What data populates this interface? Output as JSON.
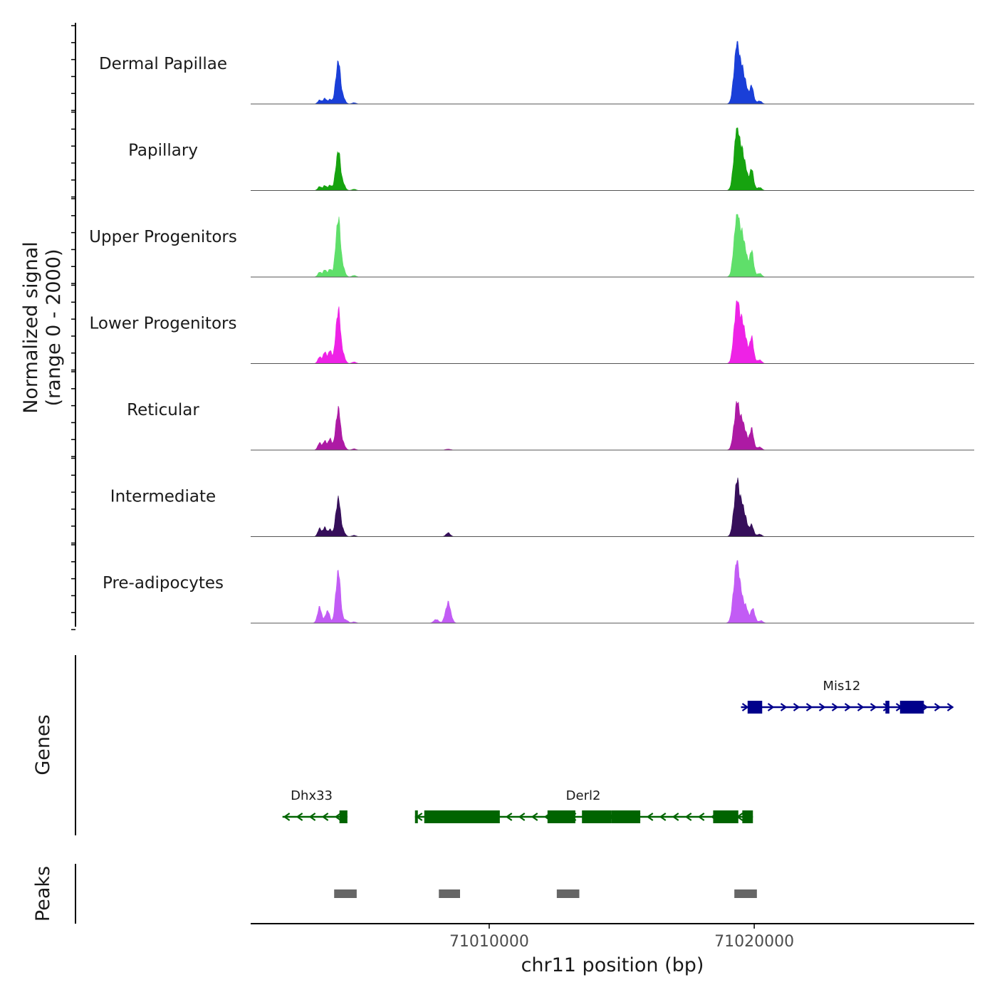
{
  "chart_data": {
    "type": "area",
    "title": "",
    "chromosome": "chr11",
    "xlabel": "chr11 position (bp)",
    "xlim": [
      71001000,
      71028300
    ],
    "xticks": [
      71010000,
      71020000
    ],
    "xtick_labels": [
      "71010000",
      "71020000"
    ],
    "ylabel_line1": "Normalized signal",
    "ylabel_line2": "(range 0 - 2000)",
    "ylim": [
      0,
      2000
    ],
    "genes_label": "Genes",
    "peaks_label": "Peaks",
    "tracks": [
      {
        "name": "Dermal Papillae",
        "color": "#1a3fd8",
        "peaks": [
          [
            71003600,
            120,
            70
          ],
          [
            71003800,
            170,
            70
          ],
          [
            71004000,
            140,
            70
          ],
          [
            71004300,
            1350,
            90
          ],
          [
            71004500,
            150,
            80
          ],
          [
            71004900,
            40,
            80
          ],
          [
            71019350,
            1900,
            110
          ],
          [
            71019600,
            900,
            110
          ],
          [
            71019900,
            550,
            80
          ],
          [
            71020200,
            100,
            80
          ]
        ]
      },
      {
        "name": "Papillary",
        "color": "#16a30f",
        "peaks": [
          [
            71003600,
            120,
            70
          ],
          [
            71003800,
            150,
            70
          ],
          [
            71004000,
            160,
            70
          ],
          [
            71004300,
            1250,
            90
          ],
          [
            71004500,
            160,
            80
          ],
          [
            71004900,
            40,
            80
          ],
          [
            71019350,
            2000,
            110
          ],
          [
            71019600,
            1000,
            110
          ],
          [
            71019900,
            650,
            80
          ],
          [
            71020200,
            100,
            80
          ]
        ]
      },
      {
        "name": "Upper Progenitors",
        "color": "#5fdf6a",
        "peaks": [
          [
            71003600,
            150,
            70
          ],
          [
            71003800,
            220,
            70
          ],
          [
            71004000,
            240,
            70
          ],
          [
            71004300,
            1850,
            90
          ],
          [
            71004500,
            200,
            80
          ],
          [
            71004900,
            50,
            80
          ],
          [
            71019350,
            2000,
            110
          ],
          [
            71019600,
            1100,
            110
          ],
          [
            71019900,
            800,
            80
          ],
          [
            71020200,
            120,
            80
          ]
        ]
      },
      {
        "name": "Lower Progenitors",
        "color": "#ee22e6",
        "peaks": [
          [
            71003600,
            200,
            70
          ],
          [
            71003800,
            350,
            70
          ],
          [
            71004000,
            400,
            70
          ],
          [
            71004300,
            1700,
            90
          ],
          [
            71004500,
            200,
            80
          ],
          [
            71004900,
            50,
            80
          ],
          [
            71019350,
            1950,
            110
          ],
          [
            71019600,
            1100,
            110
          ],
          [
            71019900,
            800,
            80
          ],
          [
            71020200,
            120,
            80
          ]
        ]
      },
      {
        "name": "Reticular",
        "color": "#ad1aa4",
        "peaks": [
          [
            71003600,
            220,
            70
          ],
          [
            71003800,
            280,
            70
          ],
          [
            71004000,
            350,
            70
          ],
          [
            71004300,
            1300,
            90
          ],
          [
            71004500,
            150,
            80
          ],
          [
            71004900,
            40,
            80
          ],
          [
            71008450,
            30,
            100
          ],
          [
            71019350,
            1450,
            110
          ],
          [
            71019600,
            750,
            110
          ],
          [
            71019900,
            650,
            80
          ],
          [
            71020200,
            100,
            80
          ]
        ]
      },
      {
        "name": "Intermediate",
        "color": "#360f5a",
        "peaks": [
          [
            71003600,
            250,
            70
          ],
          [
            71003800,
            280,
            70
          ],
          [
            71004000,
            220,
            70
          ],
          [
            71004300,
            1200,
            90
          ],
          [
            71004500,
            120,
            80
          ],
          [
            71004900,
            40,
            80
          ],
          [
            71008450,
            120,
            80
          ],
          [
            71019350,
            1700,
            110
          ],
          [
            71019600,
            800,
            110
          ],
          [
            71019900,
            350,
            80
          ],
          [
            71020200,
            80,
            80
          ]
        ]
      },
      {
        "name": "Pre-adipocytes",
        "color": "#c25cf5",
        "peaks": [
          [
            71003600,
            500,
            80
          ],
          [
            71003900,
            400,
            80
          ],
          [
            71004300,
            1650,
            90
          ],
          [
            71004600,
            100,
            80
          ],
          [
            71004900,
            40,
            80
          ],
          [
            71008000,
            120,
            90
          ],
          [
            71008450,
            650,
            100
          ],
          [
            71019350,
            2000,
            120
          ],
          [
            71019650,
            550,
            110
          ],
          [
            71019950,
            450,
            80
          ],
          [
            71020250,
            80,
            80
          ]
        ]
      }
    ],
    "genes": [
      {
        "name": "Mis12",
        "strand": "+",
        "color": "#00008b",
        "row": 1,
        "start": 71019500,
        "end": 71027500,
        "label_pos": 71023300,
        "exons": [
          [
            71019750,
            71020300
          ],
          [
            71024950,
            71025100
          ],
          [
            71025500,
            71026400
          ]
        ]
      },
      {
        "name": "Dhx33",
        "strand": "-",
        "color": "#006400",
        "row": 2,
        "start": 71002200,
        "end": 71004650,
        "label_pos": 71003300,
        "exons": [
          [
            71004350,
            71004650
          ]
        ]
      },
      {
        "name": "Derl2",
        "strand": "-",
        "color": "#006400",
        "row": 2,
        "start": 71007200,
        "end": 71019950,
        "label_pos": 71013550,
        "exons": [
          [
            71007200,
            71007300
          ],
          [
            71007550,
            71010400
          ],
          [
            71012200,
            71013250
          ],
          [
            71013500,
            71014600
          ],
          [
            71014600,
            71015700
          ],
          [
            71018450,
            71019400
          ],
          [
            71019550,
            71019950
          ]
        ]
      }
    ],
    "peaks": [
      [
        71004150,
        71005000
      ],
      [
        71008100,
        71008900
      ],
      [
        71012550,
        71013400
      ],
      [
        71019250,
        71020100
      ]
    ]
  }
}
